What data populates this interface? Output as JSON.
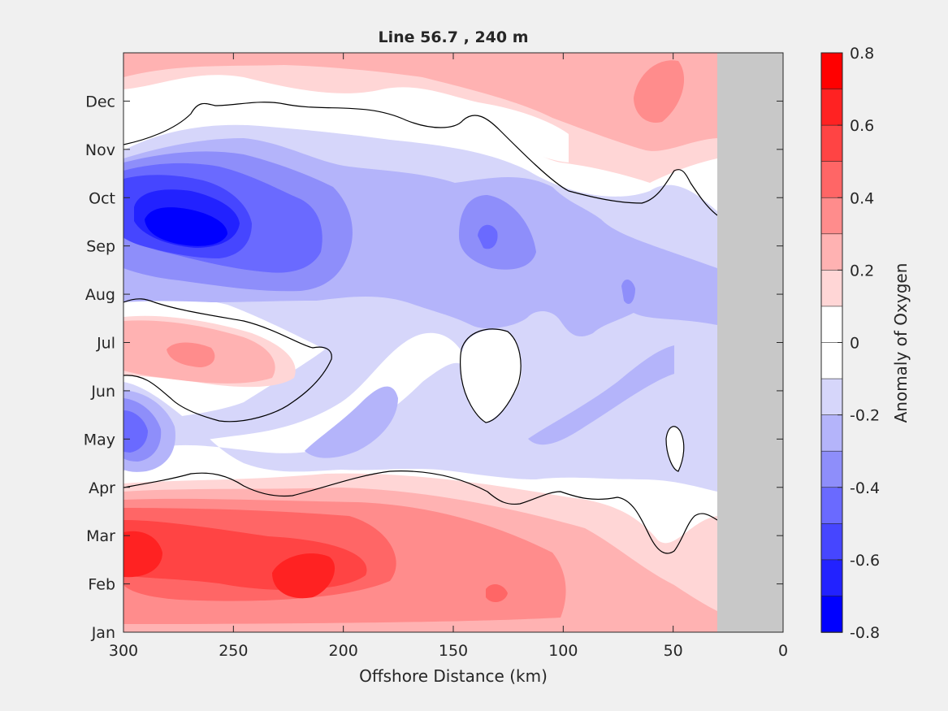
{
  "chart_data": {
    "type": "heatmap",
    "title": "Line 56.7 , 240 m",
    "xlabel": "Offshore Distance (km)",
    "ylabel": "",
    "xlim": [
      300,
      0
    ],
    "x_reversed": true,
    "x_ticks": [
      300,
      250,
      200,
      150,
      100,
      50,
      0
    ],
    "y_ticks": [
      "Jan",
      "Feb",
      "Mar",
      "Apr",
      "May",
      "Jun",
      "Jul",
      "Aug",
      "Sep",
      "Oct",
      "Nov",
      "Dec"
    ],
    "colorbar": {
      "label": "Anomaly of Oxygen",
      "range": [
        -0.8,
        0.8
      ],
      "ticks": [
        0.8,
        0.6,
        0.4,
        0.2,
        0,
        -0.2,
        -0.4,
        -0.6,
        -0.8
      ],
      "levels": 16,
      "colors_top_to_bottom": [
        "#ff0000",
        "#ff2222",
        "#ff4444",
        "#ff6666",
        "#ff8c8c",
        "#ffb2b2",
        "#ffd6d6",
        "#ffffff",
        "#ffffff",
        "#d6d6fa",
        "#b4b4fa",
        "#8e8efa",
        "#6a6aff",
        "#4646ff",
        "#2222ff",
        "#0000ff"
      ]
    },
    "no_data_region_km": [
      30,
      0
    ],
    "no_data_color": "#c8c8c8",
    "zero_contour_color": "#000000",
    "approximate_field": [
      {
        "month": "Jan",
        "km_300_200": 0.2,
        "km_200_100": 0.3,
        "km_100_30": 0.2
      },
      {
        "month": "Feb",
        "km_300_200": 0.6,
        "km_200_100": 0.4,
        "km_100_30": 0.25
      },
      {
        "month": "Mar",
        "km_300_200": 0.65,
        "km_200_100": 0.35,
        "km_100_30": 0.15
      },
      {
        "month": "Apr",
        "km_300_200": 0.0,
        "km_200_100": -0.05,
        "km_100_30": 0.0
      },
      {
        "month": "May",
        "km_300_200": -0.35,
        "km_200_100": -0.2,
        "km_100_30": -0.15
      },
      {
        "month": "Jun",
        "km_300_200": 0.1,
        "km_200_100": -0.2,
        "km_100_30": -0.15
      },
      {
        "month": "Jul",
        "km_300_200": 0.25,
        "km_200_100": -0.05,
        "km_100_30": -0.2
      },
      {
        "month": "Aug",
        "km_300_200": -0.3,
        "km_200_100": -0.15,
        "km_100_30": -0.2
      },
      {
        "month": "Sep",
        "km_300_200": -0.75,
        "km_200_100": -0.3,
        "km_100_30": -0.2
      },
      {
        "month": "Oct",
        "km_300_200": -0.45,
        "km_200_100": -0.25,
        "km_100_30": -0.1
      },
      {
        "month": "Nov",
        "km_300_200": -0.1,
        "km_200_100": 0.0,
        "km_100_30": 0.15
      },
      {
        "month": "Dec",
        "km_300_200": 0.1,
        "km_200_100": 0.2,
        "km_100_30": 0.3
      }
    ]
  }
}
